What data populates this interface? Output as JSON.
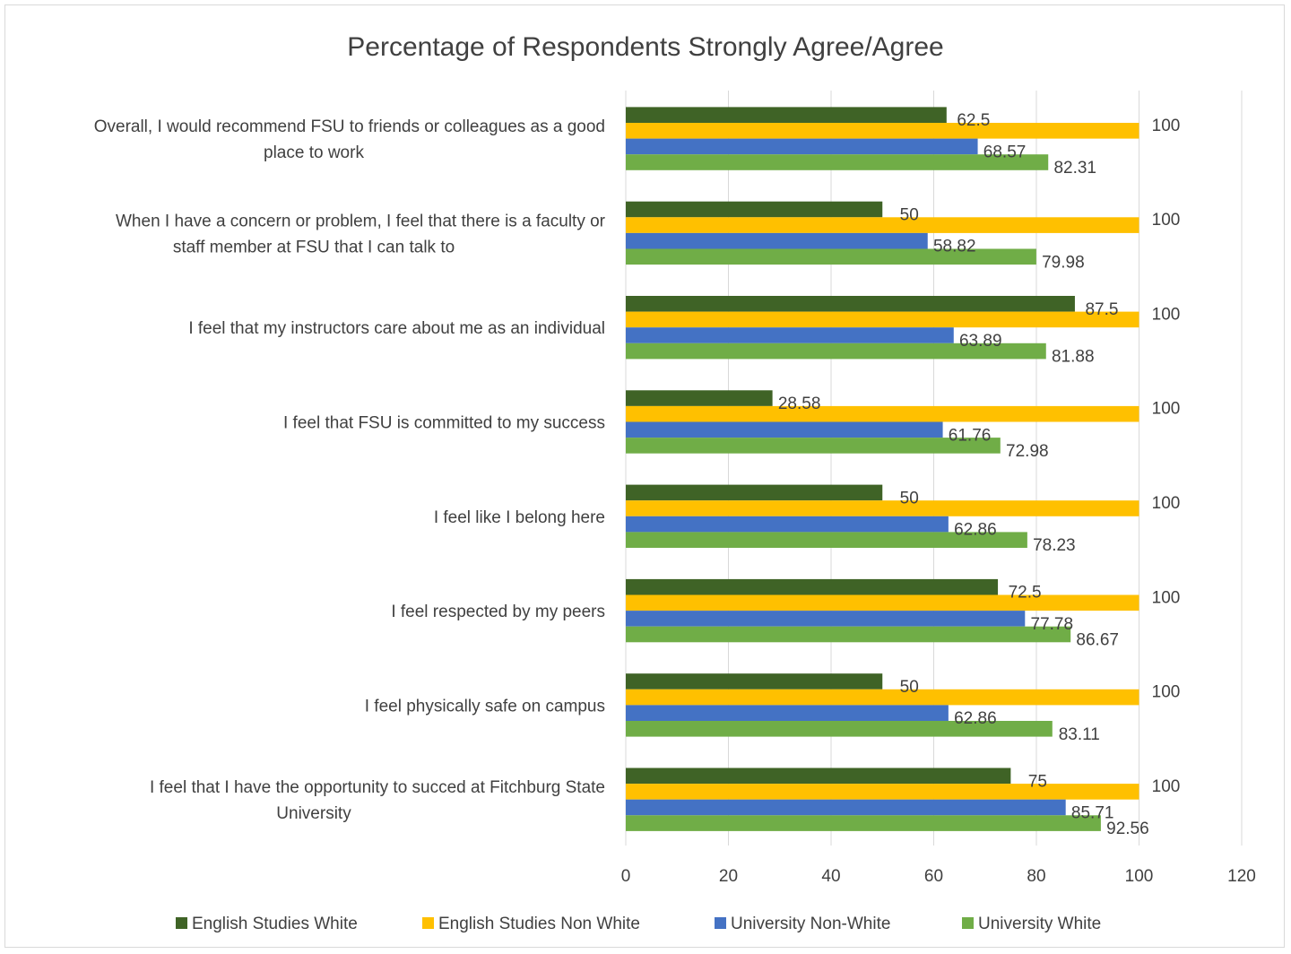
{
  "chart_data": {
    "type": "bar",
    "orientation": "horizontal",
    "title": "Percentage of Respondents Strongly Agree/Agree",
    "xlabel": "",
    "ylabel": "",
    "xlim": [
      0,
      120
    ],
    "xticks": [
      0,
      20,
      40,
      60,
      80,
      100,
      120
    ],
    "grid": true,
    "legend_position": "bottom",
    "categories": [
      [
        "Overall, I would recommend FSU to friends or colleagues as a good",
        "place to work"
      ],
      [
        "When I have a concern or problem, I feel that there is a faculty or",
        "staff member at FSU that I can talk to"
      ],
      [
        "I feel that my instructors care about me as an individual"
      ],
      [
        "I feel that FSU is committed to my success"
      ],
      [
        "I feel like I belong here"
      ],
      [
        "I feel respected by my peers"
      ],
      [
        "I feel physically safe on campus"
      ],
      [
        "I feel that I have the opportunity to succed at Fitchburg State",
        "University"
      ]
    ],
    "series": [
      {
        "name": "English Studies White",
        "color": "#3f6326",
        "values": [
          "62.5",
          "50",
          "87.5",
          "28.58",
          "50",
          "72.5",
          "50",
          "75"
        ]
      },
      {
        "name": "English Studies Non White",
        "color": "#ffc000",
        "values": [
          "100",
          "100",
          "100",
          "100",
          "100",
          "100",
          "100",
          "100"
        ]
      },
      {
        "name": "University Non-White",
        "color": "#4472c4",
        "values": [
          "68.57",
          "58.82",
          "63.89",
          "61.76",
          "62.86",
          "77.78",
          "62.86",
          "85.71"
        ]
      },
      {
        "name": "University White",
        "color": "#70ad47",
        "values": [
          "82.31",
          "79.98",
          "81.88",
          "72.98",
          "78.23",
          "86.67",
          "83.11",
          "92.56"
        ]
      }
    ]
  }
}
